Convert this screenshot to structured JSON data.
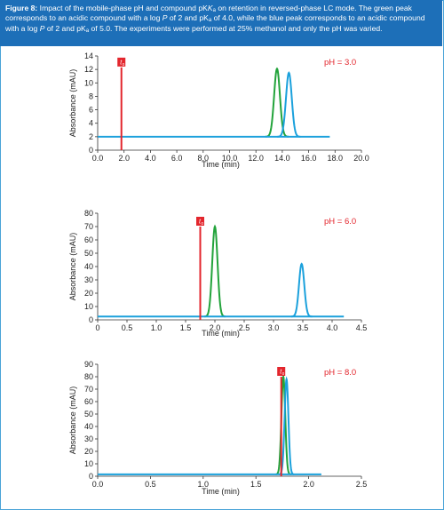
{
  "caption": {
    "label": "Figure 8:",
    "p1": " Impact of the mobile-phase pH and compound pK",
    "p2": " on retention in reversed-phase LC mode. The green peak corresponds to an acidic compound with a log ",
    "p3": " of 2 and pK",
    "p4": " of 4.0, while the blue peak corresponds to an acidic compound with a log ",
    "p5": " of 2 and pK",
    "p6": " of 5.0. The experiments were performed at 25% methanol and only the pH was varied.",
    "italic_k": "K",
    "italic_p": "P",
    "sub_a": "a"
  },
  "colors": {
    "green": "#22a33b",
    "blue": "#1ba1dc",
    "red": "#e3262d",
    "accent": "#1d6fb8"
  },
  "chart_data": [
    {
      "type": "line",
      "annotation": "pH = 3.0",
      "xlabel": "Time (min)",
      "ylabel": "Absorbance (mAU)",
      "xlim": [
        0,
        20
      ],
      "ylim": [
        0,
        14
      ],
      "xticks": [
        "0.0",
        "2.0",
        "4.0",
        "6.0",
        "8.0",
        "10.0",
        "12.0",
        "14.0",
        "16.0",
        "18.0",
        "20.0"
      ],
      "yticks": [
        "0",
        "2",
        "4",
        "6",
        "8",
        "10",
        "12",
        "14"
      ],
      "t0_label": "t0",
      "t0": 1.8,
      "t0_height": 12.3,
      "baseline": 2.0,
      "x_end": 17.6,
      "peaks": [
        {
          "name": "green",
          "x": 13.6,
          "height": 12.1,
          "width": 0.22
        },
        {
          "name": "blue",
          "x": 14.5,
          "height": 11.5,
          "width": 0.22
        }
      ]
    },
    {
      "type": "line",
      "annotation": "pH = 6.0",
      "xlabel": "Time (min)",
      "ylabel": "Absorbance (mAU)",
      "xlim": [
        0,
        4.5
      ],
      "ylim": [
        0,
        80
      ],
      "xticks": [
        "0",
        "0.5",
        "1.0",
        "1.5",
        "2.0",
        "2.5",
        "3.0",
        "3.5",
        "4.0",
        "4.5"
      ],
      "yticks": [
        "0",
        "10",
        "20",
        "30",
        "40",
        "50",
        "60",
        "70",
        "80"
      ],
      "t0_label": "t0",
      "t0": 1.75,
      "t0_height": 70,
      "baseline": 2.5,
      "x_end": 4.2,
      "peaks": [
        {
          "name": "green",
          "x": 2.0,
          "height": 70,
          "width": 0.045
        },
        {
          "name": "blue",
          "x": 3.48,
          "height": 42,
          "width": 0.045
        }
      ]
    },
    {
      "type": "line",
      "annotation": "pH = 8.0",
      "xlabel": "Time (min)",
      "ylabel": "Absorbance (mAU)",
      "xlim": [
        0,
        2.5
      ],
      "ylim": [
        0,
        90
      ],
      "xticks": [
        "0.0",
        "0.5",
        "1.0",
        "1.5",
        "2.0",
        "2.5"
      ],
      "yticks": [
        "0",
        "10",
        "20",
        "30",
        "40",
        "50",
        "60",
        "70",
        "80",
        "90"
      ],
      "t0_label": "t0",
      "t0": 1.74,
      "t0_height": 80,
      "baseline": 1.5,
      "x_end": 2.12,
      "peaks": [
        {
          "name": "green",
          "x": 1.76,
          "height": 80,
          "width": 0.018
        },
        {
          "name": "blue",
          "x": 1.79,
          "height": 78,
          "width": 0.018
        }
      ]
    }
  ]
}
